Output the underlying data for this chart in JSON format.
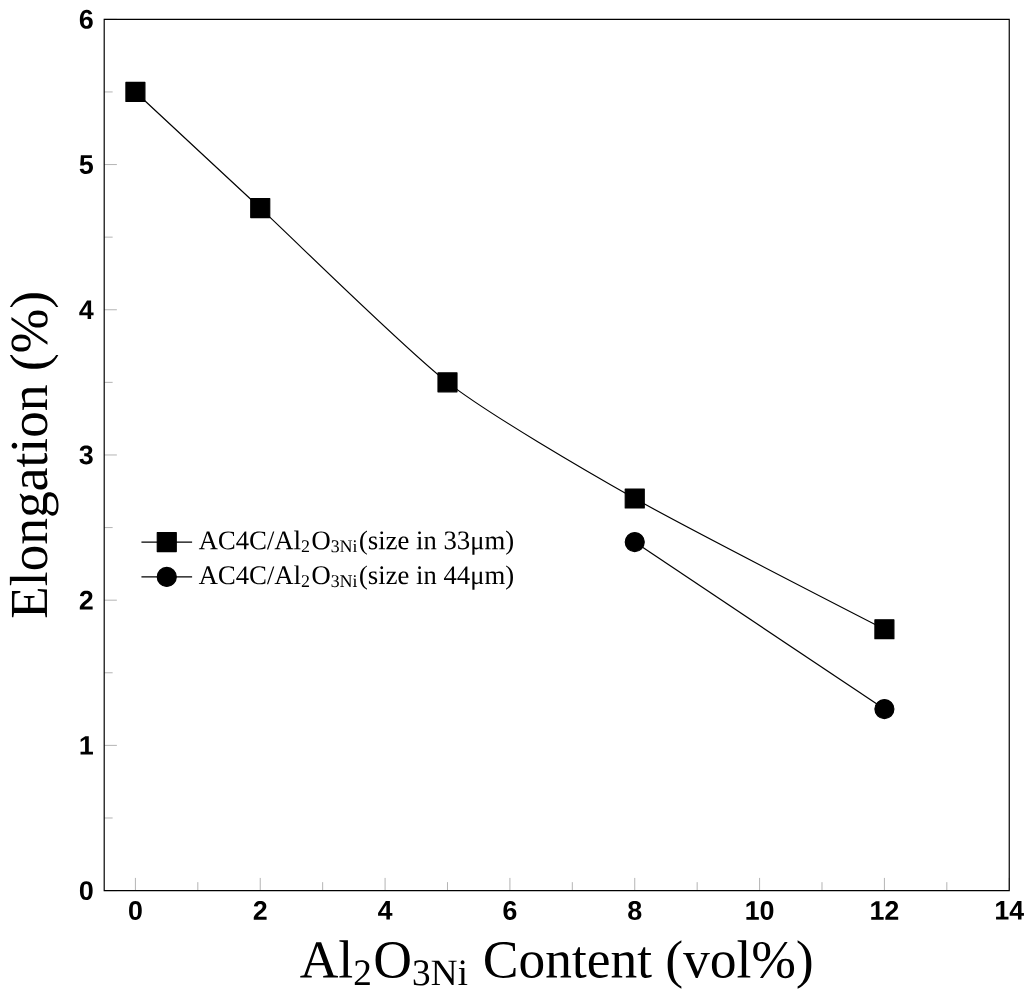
{
  "chart_data": {
    "type": "line",
    "xlabel": "Al$_{2}$O$_{3Ni}$ Content (vol%)",
    "ylabel": "Elongation (%)",
    "xlim": [
      -0.5,
      14
    ],
    "xticks": [
      0,
      2,
      4,
      6,
      8,
      10,
      12,
      14
    ],
    "ylim": [
      0,
      6
    ],
    "yticks": [
      0,
      1,
      2,
      3,
      4,
      5,
      6
    ],
    "legend": "left",
    "grid": false,
    "series": [
      {
        "name": "AC4C/Al$_{2}$O$_{3Ni}$(size in 33μm)",
        "color": "#000000",
        "marker": "square",
        "x": [
          0,
          2,
          5,
          8,
          12
        ],
        "values": [
          5.5,
          4.7,
          3.5,
          2.7,
          1.8
        ]
      },
      {
        "name": "AC4C/Al$_{2}$O$_{3Ni}$(size in 44μm)",
        "color": "#000000",
        "marker": "circle",
        "x": [
          8,
          12
        ],
        "values": [
          2.4,
          1.25
        ]
      }
    ]
  }
}
